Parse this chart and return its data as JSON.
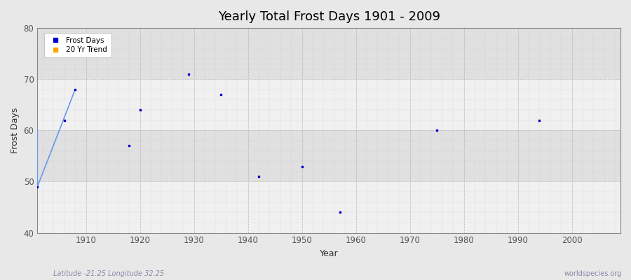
{
  "title": "Yearly Total Frost Days 1901 - 2009",
  "xlabel": "Year",
  "ylabel": "Frost Days",
  "xlim": [
    1901,
    2009
  ],
  "ylim": [
    40,
    80
  ],
  "yticks": [
    40,
    50,
    60,
    70,
    80
  ],
  "xticks": [
    1910,
    1920,
    1930,
    1940,
    1950,
    1960,
    1970,
    1980,
    1990,
    2000
  ],
  "background_color": "#e8e8e8",
  "plot_bg_color": "#e8e8e8",
  "band_color_light": "#ebebeb",
  "band_color_dark": "#d8d8d8",
  "scatter_color": "#0000cc",
  "trend_color": "#6699ee",
  "scatter_points": [
    [
      1901,
      49
    ],
    [
      1906,
      62
    ],
    [
      1908,
      68
    ],
    [
      1918,
      57
    ],
    [
      1920,
      64
    ],
    [
      1929,
      71
    ],
    [
      1935,
      67
    ],
    [
      1942,
      51
    ],
    [
      1950,
      53
    ],
    [
      1957,
      44
    ],
    [
      1975,
      60
    ],
    [
      1994,
      62
    ]
  ],
  "trend_line": [
    [
      1901,
      60
    ],
    [
      1901,
      49
    ],
    [
      1908,
      68
    ]
  ],
  "footnote_left": "Latitude -21.25 Longitude 32.25",
  "footnote_right": "worldspecies.org",
  "footnote_color": "#8888aa"
}
